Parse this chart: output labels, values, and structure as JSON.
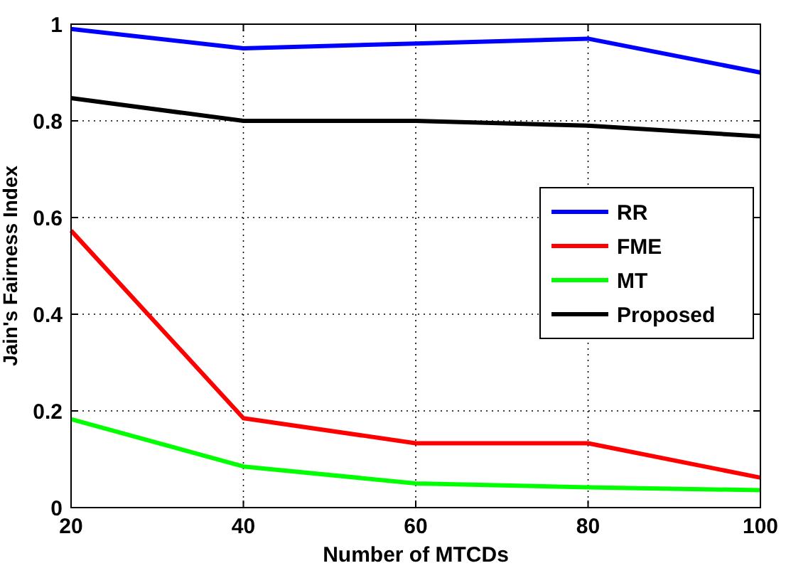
{
  "chart_data": {
    "type": "line",
    "xlabel": "Number of MTCDs",
    "ylabel": "Jain's Fairness Index",
    "x": [
      20,
      40,
      60,
      80,
      100
    ],
    "series": [
      {
        "name": "RR",
        "color": "#0000ff",
        "values": [
          0.99,
          0.95,
          0.96,
          0.97,
          0.9
        ]
      },
      {
        "name": "FME",
        "color": "#ff0000",
        "values": [
          0.573,
          0.185,
          0.133,
          0.133,
          0.062
        ]
      },
      {
        "name": "MT",
        "color": "#00ff00",
        "values": [
          0.183,
          0.085,
          0.05,
          0.042,
          0.036
        ]
      },
      {
        "name": "Proposed",
        "color": "#000000",
        "values": [
          0.847,
          0.8,
          0.8,
          0.79,
          0.768
        ]
      }
    ],
    "xlim": [
      20,
      100
    ],
    "xticks": [
      20,
      40,
      60,
      80,
      100
    ],
    "ylim": [
      0,
      1
    ],
    "yticks": [
      0,
      0.2,
      0.4,
      0.6,
      0.8,
      1
    ],
    "grid": true,
    "legend": "right",
    "marker": "none",
    "line_style": "solid"
  }
}
